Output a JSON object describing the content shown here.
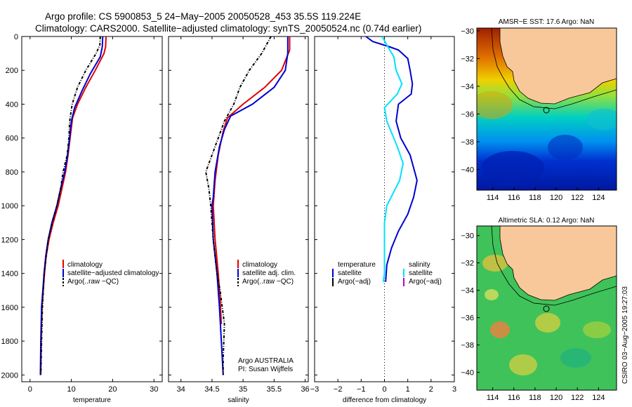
{
  "header": {
    "line1": "Argo profile: CS 5900853_5 24−May−2005 20050528_453 35.5S 119.224E",
    "line2": "Climatology: CARS2000. Satellite−adjusted climatology: synTS_20050524.nc (0.74d earlier)"
  },
  "credit": {
    "line1": "Argo AUSTRALIA",
    "line2": "PI: Susan Wijffels"
  },
  "stamp": "CSIRO 03−Aug−2005 19:27:03",
  "colors": {
    "climatology": "#e00000",
    "satellite": "#0000d0",
    "argo": "#000000",
    "salinity": "#00e0ff",
    "argo_adj": "#c000c0",
    "land": "#f8c89a"
  },
  "chart_data": [
    {
      "type": "line",
      "xlabel": "temperature",
      "xlim": [
        -2,
        32
      ],
      "ylim": [
        2040,
        0
      ],
      "xticks": [
        "0",
        "10",
        "20",
        "30"
      ],
      "yticks": [
        "0",
        "200",
        "400",
        "600",
        "800",
        "1000",
        "1200",
        "1400",
        "1600",
        "1800",
        "2000"
      ],
      "legend": [
        "climatology",
        "satellite−adjusted climatology",
        "Argo(..raw −QC)"
      ],
      "series": [
        {
          "name": "climatology",
          "color": "#e00000",
          "points": [
            [
              18.4,
              0
            ],
            [
              18.3,
              60
            ],
            [
              17.9,
              100
            ],
            [
              15.8,
              200
            ],
            [
              13.5,
              300
            ],
            [
              11.5,
              400
            ],
            [
              10.3,
              480
            ],
            [
              9.7,
              600
            ],
            [
              9.2,
              700
            ],
            [
              8.6,
              800
            ],
            [
              7.7,
              900
            ],
            [
              6.8,
              1000
            ],
            [
              5.6,
              1100
            ],
            [
              4.6,
              1200
            ],
            [
              3.9,
              1300
            ],
            [
              3.5,
              1400
            ],
            [
              3.2,
              1500
            ],
            [
              2.9,
              1600
            ],
            [
              2.7,
              1800
            ],
            [
              2.6,
              2000
            ]
          ]
        },
        {
          "name": "satellite−adjusted climatology",
          "color": "#0000d0",
          "points": [
            [
              17.6,
              0
            ],
            [
              17.5,
              60
            ],
            [
              17.0,
              120
            ],
            [
              14.6,
              220
            ],
            [
              12.6,
              320
            ],
            [
              10.8,
              420
            ],
            [
              10.0,
              500
            ],
            [
              9.6,
              600
            ],
            [
              9.1,
              700
            ],
            [
              8.4,
              800
            ],
            [
              7.4,
              900
            ],
            [
              6.5,
              1000
            ],
            [
              5.3,
              1100
            ],
            [
              4.4,
              1200
            ],
            [
              3.8,
              1300
            ],
            [
              3.4,
              1400
            ],
            [
              3.1,
              1500
            ],
            [
              2.8,
              1600
            ],
            [
              2.6,
              1800
            ],
            [
              2.5,
              2000
            ]
          ]
        },
        {
          "name": "Argo(..raw −QC)",
          "color": "#000000",
          "dashed": true,
          "points": [
            [
              17.0,
              0
            ],
            [
              16.9,
              50
            ],
            [
              16.0,
              100
            ],
            [
              13.5,
              200
            ],
            [
              11.5,
              300
            ],
            [
              10.2,
              400
            ],
            [
              9.9,
              450
            ],
            [
              9.6,
              500
            ],
            [
              9.4,
              600
            ],
            [
              9.0,
              700
            ],
            [
              8.0,
              800
            ],
            [
              7.4,
              900
            ],
            [
              6.5,
              1000
            ],
            [
              5.4,
              1100
            ],
            [
              4.4,
              1200
            ],
            [
              3.9,
              1300
            ],
            [
              3.4,
              1400
            ],
            [
              3.2,
              1500
            ],
            [
              3.0,
              1600
            ],
            [
              2.8,
              1800
            ],
            [
              2.6,
              2000
            ]
          ]
        }
      ]
    },
    {
      "type": "line",
      "xlabel": "salinity",
      "xlim": [
        33.8,
        36.05
      ],
      "ylim": [
        2040,
        0
      ],
      "xticks": [
        "34",
        "34.5",
        "35",
        "35.5",
        "36"
      ],
      "legend": [
        "climatology",
        "satellite adj. clim.",
        "Argo(..raw −QC)"
      ],
      "series": [
        {
          "name": "climatology",
          "color": "#e00000",
          "points": [
            [
              35.75,
              0
            ],
            [
              35.75,
              80
            ],
            [
              35.62,
              200
            ],
            [
              35.35,
              300
            ],
            [
              35.0,
              400
            ],
            [
              34.75,
              480
            ],
            [
              34.68,
              560
            ],
            [
              34.6,
              700
            ],
            [
              34.55,
              850
            ],
            [
              34.52,
              1000
            ],
            [
              34.55,
              1200
            ],
            [
              34.6,
              1400
            ],
            [
              34.63,
              1550
            ],
            [
              34.65,
              1700
            ]
          ]
        },
        {
          "name": "satellite adj. clim.",
          "color": "#0000d0",
          "points": [
            [
              35.72,
              0
            ],
            [
              35.72,
              100
            ],
            [
              35.68,
              200
            ],
            [
              35.5,
              300
            ],
            [
              35.15,
              400
            ],
            [
              34.8,
              470
            ],
            [
              34.7,
              550
            ],
            [
              34.62,
              650
            ],
            [
              34.55,
              800
            ],
            [
              34.52,
              950
            ],
            [
              34.5,
              1000
            ],
            [
              34.52,
              1200
            ],
            [
              34.58,
              1400
            ],
            [
              34.62,
              1600
            ],
            [
              34.65,
              1800
            ],
            [
              34.68,
              2000
            ]
          ]
        },
        {
          "name": "Argo(..raw −QC)",
          "color": "#000000",
          "dashed": true,
          "points": [
            [
              35.45,
              0
            ],
            [
              35.3,
              100
            ],
            [
              35.1,
              200
            ],
            [
              34.95,
              300
            ],
            [
              34.85,
              400
            ],
            [
              34.7,
              500
            ],
            [
              34.6,
              600
            ],
            [
              34.5,
              700
            ],
            [
              34.4,
              800
            ],
            [
              34.45,
              900
            ],
            [
              34.48,
              1000
            ],
            [
              34.52,
              1200
            ],
            [
              34.58,
              1400
            ],
            [
              34.63,
              1500
            ],
            [
              34.7,
              1700
            ],
            [
              34.68,
              1900
            ],
            [
              34.68,
              2000
            ]
          ]
        }
      ]
    },
    {
      "type": "line",
      "xlabel": "difference from climatology",
      "xlim": [
        -3,
        3
      ],
      "ylim": [
        2040,
        0
      ],
      "xticks": [
        "−3",
        "−2",
        "−1",
        "0",
        "1",
        "2",
        "3"
      ],
      "legend_left": [
        "temperature",
        "satellite",
        "Argo(−adj)"
      ],
      "legend_right": [
        "salinity",
        "satellite",
        "Argo(−adj)"
      ],
      "series": [
        {
          "name": "temperature",
          "color": "#0000d0",
          "points": [
            [
              -0.8,
              0
            ],
            [
              -0.5,
              30
            ],
            [
              0.2,
              60
            ],
            [
              0.6,
              80
            ],
            [
              1.0,
              130
            ],
            [
              1.1,
              200
            ],
            [
              1.2,
              280
            ],
            [
              1.15,
              340
            ],
            [
              0.6,
              400
            ],
            [
              0.5,
              500
            ],
            [
              0.7,
              600
            ],
            [
              1.1,
              700
            ],
            [
              1.4,
              850
            ],
            [
              1.25,
              950
            ],
            [
              1.0,
              1050
            ],
            [
              0.6,
              1150
            ],
            [
              0.3,
              1250
            ],
            [
              0.1,
              1350
            ],
            [
              0.05,
              1450
            ]
          ]
        },
        {
          "name": "salinity",
          "color": "#00e0ff",
          "points": [
            [
              -0.1,
              0
            ],
            [
              0.1,
              50
            ],
            [
              0.4,
              120
            ],
            [
              0.5,
              200
            ],
            [
              0.75,
              280
            ],
            [
              0.55,
              340
            ],
            [
              0.0,
              420
            ],
            [
              0.1,
              500
            ],
            [
              0.55,
              650
            ],
            [
              0.8,
              750
            ],
            [
              0.65,
              850
            ],
            [
              0.1,
              1000
            ],
            [
              0.0,
              1100
            ],
            [
              0.0,
              1400
            ],
            [
              -0.05,
              1450
            ]
          ]
        }
      ]
    },
    {
      "type": "heatmap",
      "title": "AMSR−E SST: 17.6 Argo: NaN",
      "xlim": [
        112.5,
        125.7
      ],
      "ylim": [
        -41.5,
        -29.8
      ],
      "xticks": [
        "114",
        "116",
        "118",
        "120",
        "122",
        "124"
      ],
      "yticks": [
        "−30",
        "−32",
        "−34",
        "−36",
        "−38",
        "−40"
      ],
      "float_position": [
        119.2,
        -35.5
      ]
    },
    {
      "type": "heatmap",
      "title": "Altimetric SLA: 0.12 Argo: NaN",
      "xlim": [
        112.5,
        125.7
      ],
      "ylim": [
        -41.3,
        -29.3
      ],
      "xticks": [
        "114",
        "116",
        "118",
        "120",
        "122",
        "124"
      ],
      "yticks": [
        "−30",
        "−32",
        "−34",
        "−36",
        "−38",
        "−40"
      ],
      "float_position": [
        119.2,
        -35.5
      ]
    }
  ]
}
